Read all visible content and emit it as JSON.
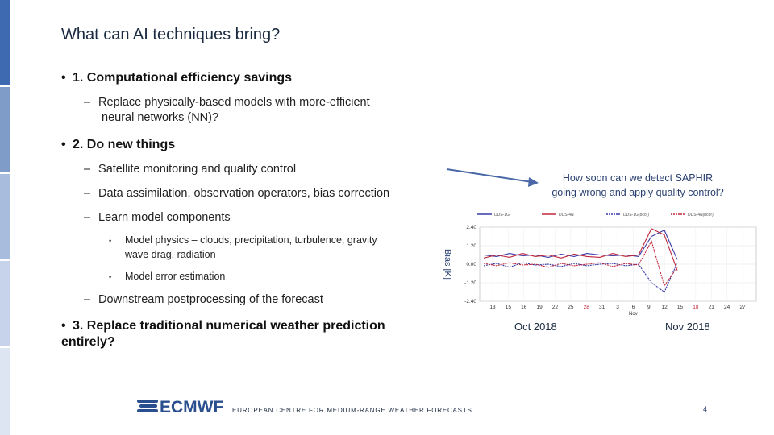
{
  "slide": {
    "title": "What can AI techniques bring?",
    "page_number": "4",
    "footer": "EUROPEAN CENTRE FOR MEDIUM-RANGE WEATHER FORECASTS",
    "logo_text": "ECMWF"
  },
  "content": {
    "item1": "1. Computational efficiency savings",
    "item1_sub1_line1": "Replace physically-based models with more-efficient",
    "item1_sub1_line2": "neural networks (NN)?",
    "item2": "2. Do new things",
    "item2_sub1": "Satellite monitoring and quality control",
    "item2_sub2": "Data assimilation, observation operators, bias correction",
    "item2_sub3": "Learn model components",
    "item2_sub3_a_line1": "Model physics – clouds, precipitation, turbulence, gravity",
    "item2_sub3_a_line2": "wave drag, radiation",
    "item2_sub3_b": "Model error estimation",
    "item2_sub4": "Downstream postprocessing of the forecast",
    "item3_line1": "3. Replace traditional numerical weather prediction",
    "item3_line2": "entirely?"
  },
  "callout": {
    "line1": "How soon can we detect SAPHIR",
    "line2": "going wrong and apply quality control?"
  },
  "colors": {
    "series_blue": "#3a3aa8",
    "series_red": "#c0283c",
    "sidebar_dark": "#3d6ab0",
    "sidebar_light": "#c7d3ea"
  },
  "chart_data": {
    "type": "line",
    "ylabel": "Bias [K]",
    "y_ticks": [
      "2.40",
      "1.20",
      "0.00",
      "-1.20",
      "-2.40"
    ],
    "ylim": [
      -2.4,
      2.4
    ],
    "x_ticks": [
      "13",
      "15",
      "16",
      "19",
      "22",
      "25",
      "28",
      "31",
      "3",
      "6",
      "9",
      "12",
      "15",
      "18",
      "21",
      "24",
      "27"
    ],
    "x_ticks_red": [
      "28",
      "18"
    ],
    "x_sublabel": "Nov",
    "months": [
      "Oct 2018",
      "Nov 2018"
    ],
    "legend": [
      "DDS-1G",
      "DDS-4N",
      "DDS-1G(bcor)",
      "DDS-4N(bcor)"
    ],
    "series": [
      {
        "name": "DDS-1G",
        "values": [
          0.6,
          0.5,
          0.7,
          0.55,
          0.6,
          0.45,
          0.65,
          0.5,
          0.7,
          0.6,
          0.55,
          0.6,
          0.5,
          1.8,
          2.2,
          0.3
        ]
      },
      {
        "name": "DDS-4N",
        "values": [
          0.4,
          0.6,
          0.45,
          0.7,
          0.5,
          0.6,
          0.4,
          0.65,
          0.5,
          0.45,
          0.7,
          0.5,
          0.6,
          2.3,
          1.9,
          -0.4
        ]
      },
      {
        "name": "DDS-1G(bcor)",
        "values": [
          -0.1,
          0.05,
          -0.2,
          0.1,
          -0.05,
          0.0,
          -0.15,
          0.05,
          -0.1,
          0.0,
          0.05,
          -0.1,
          0.0,
          -1.2,
          -1.8,
          0.1
        ]
      },
      {
        "name": "DDS-4N(bcor)",
        "values": [
          0.05,
          -0.1,
          0.1,
          -0.05,
          0.0,
          -0.2,
          0.05,
          -0.1,
          0.0,
          0.1,
          -0.15,
          0.05,
          -0.05,
          1.5,
          -1.4,
          -0.2
        ]
      }
    ]
  }
}
